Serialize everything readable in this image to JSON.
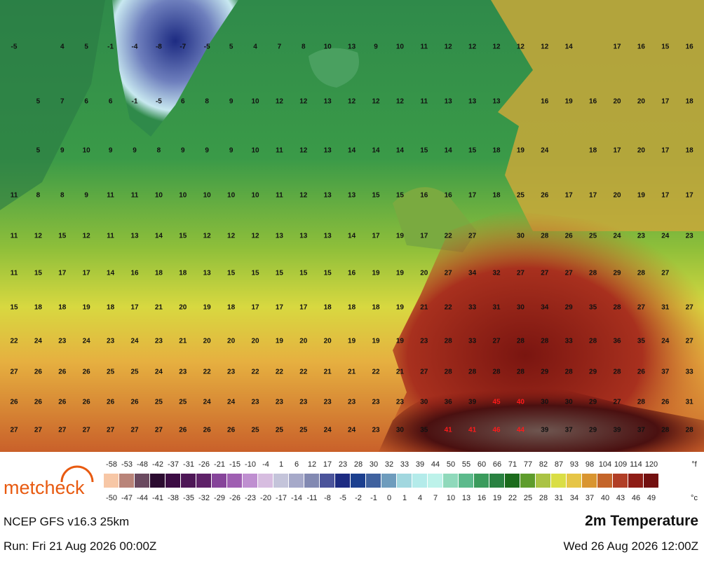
{
  "logo": "metcheck",
  "map": {
    "values": [
      [
        -5,
        null,
        4,
        5,
        -1,
        -4,
        -8,
        -7,
        -5,
        5,
        4,
        7,
        8,
        10,
        13,
        9,
        10,
        11,
        12,
        12,
        12,
        12,
        12,
        14,
        null,
        17,
        16,
        15,
        16
      ],
      [
        null,
        5,
        7,
        6,
        6,
        -1,
        -5,
        6,
        8,
        9,
        10,
        12,
        12,
        13,
        12,
        12,
        12,
        11,
        13,
        13,
        13,
        null,
        16,
        19,
        16,
        20,
        20,
        17,
        18
      ],
      [
        null,
        5,
        9,
        10,
        9,
        9,
        8,
        9,
        9,
        9,
        10,
        11,
        12,
        13,
        14,
        14,
        14,
        15,
        14,
        15,
        18,
        19,
        24,
        null,
        18,
        17,
        20,
        17,
        18
      ],
      [
        11,
        8,
        8,
        9,
        11,
        11,
        10,
        10,
        10,
        10,
        10,
        11,
        12,
        13,
        13,
        15,
        15,
        16,
        16,
        17,
        18,
        25,
        26,
        17,
        17,
        20,
        19,
        17,
        17
      ],
      [
        11,
        12,
        15,
        12,
        11,
        13,
        14,
        15,
        12,
        12,
        12,
        13,
        13,
        13,
        14,
        17,
        19,
        17,
        22,
        27,
        null,
        30,
        28,
        26,
        25,
        24,
        23,
        24,
        23
      ],
      [
        11,
        15,
        17,
        17,
        14,
        16,
        18,
        18,
        13,
        15,
        15,
        15,
        15,
        15,
        16,
        19,
        19,
        20,
        27,
        34,
        32,
        27,
        27,
        27,
        28,
        29,
        28,
        27,
        null
      ],
      [
        15,
        18,
        18,
        19,
        18,
        17,
        21,
        20,
        19,
        18,
        17,
        17,
        17,
        18,
        18,
        18,
        19,
        21,
        22,
        33,
        31,
        30,
        34,
        29,
        35,
        28,
        27,
        31,
        27
      ],
      [
        22,
        24,
        23,
        24,
        23,
        24,
        23,
        21,
        20,
        20,
        20,
        19,
        20,
        20,
        19,
        19,
        19,
        23,
        28,
        33,
        27,
        28,
        28,
        33,
        28,
        36,
        35,
        24,
        27
      ],
      [
        27,
        26,
        26,
        26,
        25,
        25,
        24,
        23,
        22,
        23,
        22,
        22,
        22,
        21,
        21,
        22,
        21,
        27,
        28,
        28,
        28,
        28,
        29,
        28,
        29,
        28,
        26,
        37,
        33
      ],
      [
        26,
        26,
        26,
        26,
        26,
        26,
        25,
        25,
        24,
        24,
        23,
        23,
        23,
        23,
        23,
        23,
        23,
        30,
        36,
        39,
        45,
        40,
        30,
        30,
        29,
        27,
        28,
        26,
        31
      ],
      [
        27,
        27,
        27,
        27,
        27,
        27,
        27,
        26,
        26,
        26,
        25,
        25,
        25,
        24,
        24,
        23,
        30,
        35,
        41,
        41,
        46,
        44,
        39,
        37,
        29,
        39,
        37,
        28,
        28
      ]
    ]
  },
  "legend": {
    "fahrenheit": [
      -58,
      -53,
      -48,
      -42,
      -37,
      -31,
      -26,
      -21,
      -15,
      -10,
      -4,
      1,
      6,
      12,
      17,
      23,
      28,
      30,
      32,
      33,
      39,
      44,
      50,
      55,
      60,
      66,
      71,
      77,
      82,
      87,
      93,
      98,
      104,
      109,
      114,
      120
    ],
    "celsius": [
      -50,
      -47,
      -44,
      -41,
      -38,
      -35,
      -32,
      -29,
      -26,
      -23,
      -20,
      -17,
      -14,
      -11,
      -8,
      -5,
      -2,
      -1,
      0,
      1,
      4,
      7,
      10,
      13,
      16,
      19,
      22,
      25,
      28,
      31,
      34,
      37,
      40,
      43,
      46,
      49
    ],
    "colors": [
      "#f7c7a6",
      "#b98479",
      "#6b4a60",
      "#2b0b30",
      "#3c0c44",
      "#4d1656",
      "#5e2168",
      "#86449a",
      "#9f5fb2",
      "#bf8fd0",
      "#d7bde0",
      "#c4c4da",
      "#a6a9c9",
      "#8289b2",
      "#4b549b",
      "#1d2b82",
      "#1c3f8f",
      "#40629f",
      "#6e9cbd",
      "#a1d7df",
      "#b4ebea",
      "#bdf2ea",
      "#8fd9bb",
      "#5cba8c",
      "#3a9b5c",
      "#2a8242",
      "#1b6b1c",
      "#5e9c2c",
      "#aac344",
      "#dade45",
      "#e6c546",
      "#d99530",
      "#c4652a",
      "#b13e26",
      "#8e1d16",
      "#731010",
      "#591010",
      "#421010",
      "#6e5650",
      "#b6aca6",
      "#e3d8cf"
    ],
    "unit_f": "°f",
    "unit_c": "°c"
  },
  "footer": {
    "model": "NCEP GFS v16.3 25km",
    "title": "2m Temperature",
    "run": "Run: Fri 21 Aug 2026 00:00Z",
    "valid": "Wed 26 Aug 2026 12:00Z"
  }
}
